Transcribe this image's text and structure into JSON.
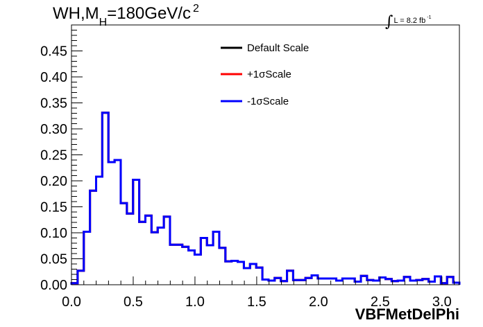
{
  "title": {
    "main": "WH,M",
    "subscript": "H",
    "value": "=180GeV/c",
    "superscript": "2"
  },
  "luminosity": {
    "integral_symbol": "∫",
    "label": "L = 8.2 fb",
    "superscript": "-1"
  },
  "colors": {
    "default": "#000000",
    "plus": "#ff0000",
    "minus": "#0000ff",
    "axis": "#000000"
  },
  "chart_data": {
    "type": "line",
    "style": "step-histogram",
    "xlabel": "VBFMetDelPhi",
    "ylabel": "",
    "xlim": [
      0,
      3.1416
    ],
    "ylim": [
      0,
      0.5
    ],
    "x_ticks": [
      "0.0",
      "0.5",
      "1.0",
      "1.5",
      "2.0",
      "2.5",
      "3.0"
    ],
    "x_tick_values": [
      0,
      0.5,
      1.0,
      1.5,
      2.0,
      2.5,
      3.0
    ],
    "y_ticks": [
      "0.00",
      "0.05",
      "0.10",
      "0.15",
      "0.20",
      "0.25",
      "0.30",
      "0.35",
      "0.40",
      "0.45"
    ],
    "y_tick_values": [
      0,
      0.05,
      0.1,
      0.15,
      0.2,
      0.25,
      0.3,
      0.35,
      0.4,
      0.45
    ],
    "bin_edges_range": [
      0,
      3.1416
    ],
    "n_bins": 63,
    "grid": false,
    "legend_position": "top-center",
    "series": [
      {
        "name": "Default Scale",
        "color": "#000000",
        "values": [
          0.003,
          0.027,
          0.102,
          0.181,
          0.208,
          0.331,
          0.236,
          0.24,
          0.157,
          0.137,
          0.202,
          0.121,
          0.133,
          0.101,
          0.11,
          0.131,
          0.077,
          0.077,
          0.073,
          0.066,
          0.058,
          0.09,
          0.076,
          0.102,
          0.071,
          0.045,
          0.046,
          0.044,
          0.032,
          0.04,
          0.033,
          0.01,
          0.008,
          0.013,
          0.007,
          0.027,
          0.009,
          0.009,
          0.013,
          0.018,
          0.012,
          0.012,
          0.012,
          0.008,
          0.012,
          0.012,
          0.006,
          0.017,
          0.009,
          0.008,
          0.014,
          0.011,
          0.007,
          0.008,
          0.015,
          0.008,
          0.009,
          0.011,
          0.006,
          0.016,
          0.003,
          0.015,
          0.004
        ]
      },
      {
        "name": "+1σScale",
        "color": "#ff0000",
        "values": [
          0.003,
          0.027,
          0.102,
          0.181,
          0.208,
          0.331,
          0.236,
          0.24,
          0.157,
          0.137,
          0.202,
          0.121,
          0.133,
          0.101,
          0.11,
          0.131,
          0.077,
          0.077,
          0.073,
          0.066,
          0.058,
          0.09,
          0.076,
          0.102,
          0.071,
          0.045,
          0.046,
          0.044,
          0.032,
          0.04,
          0.033,
          0.01,
          0.008,
          0.013,
          0.007,
          0.027,
          0.009,
          0.009,
          0.013,
          0.018,
          0.012,
          0.012,
          0.012,
          0.008,
          0.012,
          0.012,
          0.006,
          0.017,
          0.009,
          0.008,
          0.014,
          0.011,
          0.007,
          0.008,
          0.015,
          0.008,
          0.009,
          0.011,
          0.006,
          0.016,
          0.003,
          0.015,
          0.004
        ]
      },
      {
        "name": "-1σScale",
        "color": "#0000ff",
        "values": [
          0.003,
          0.027,
          0.102,
          0.181,
          0.208,
          0.331,
          0.236,
          0.24,
          0.157,
          0.137,
          0.202,
          0.121,
          0.133,
          0.101,
          0.11,
          0.131,
          0.077,
          0.077,
          0.073,
          0.066,
          0.058,
          0.09,
          0.076,
          0.102,
          0.071,
          0.045,
          0.046,
          0.044,
          0.032,
          0.04,
          0.033,
          0.01,
          0.008,
          0.013,
          0.007,
          0.027,
          0.009,
          0.009,
          0.013,
          0.018,
          0.012,
          0.012,
          0.012,
          0.008,
          0.012,
          0.012,
          0.006,
          0.017,
          0.009,
          0.008,
          0.014,
          0.011,
          0.007,
          0.008,
          0.015,
          0.008,
          0.009,
          0.011,
          0.006,
          0.016,
          0.003,
          0.015,
          0.004
        ]
      }
    ]
  }
}
